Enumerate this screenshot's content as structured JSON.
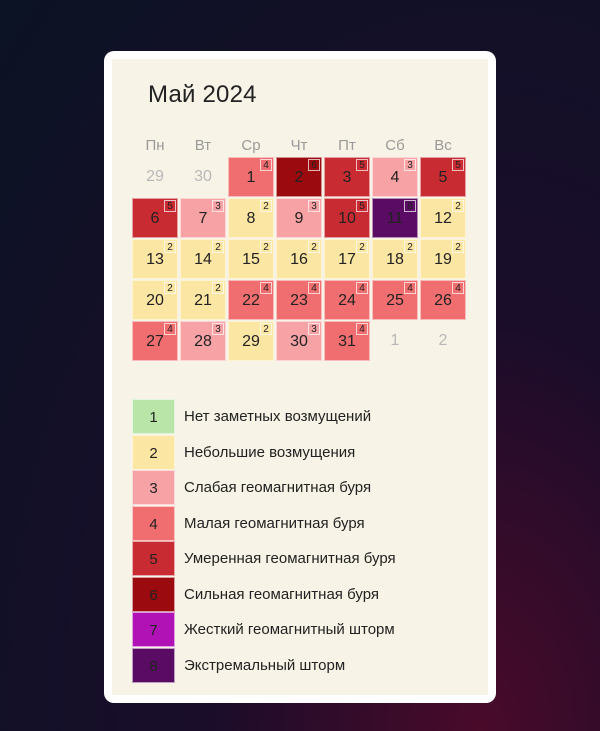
{
  "calendar": {
    "title": "Май 2024",
    "weekdays": [
      "Пн",
      "Вт",
      "Ср",
      "Чт",
      "Пт",
      "Сб",
      "Вс"
    ],
    "days": [
      {
        "day": "29",
        "level": null,
        "muted": true
      },
      {
        "day": "30",
        "level": null,
        "muted": true
      },
      {
        "day": "1",
        "level": 4
      },
      {
        "day": "2",
        "level": 6
      },
      {
        "day": "3",
        "level": 5
      },
      {
        "day": "4",
        "level": 3
      },
      {
        "day": "5",
        "level": 5
      },
      {
        "day": "6",
        "level": 5
      },
      {
        "day": "7",
        "level": 3
      },
      {
        "day": "8",
        "level": 2
      },
      {
        "day": "9",
        "level": 3
      },
      {
        "day": "10",
        "level": 5
      },
      {
        "day": "11",
        "level": 8
      },
      {
        "day": "12",
        "level": 2
      },
      {
        "day": "13",
        "level": 2
      },
      {
        "day": "14",
        "level": 2
      },
      {
        "day": "15",
        "level": 2
      },
      {
        "day": "16",
        "level": 2
      },
      {
        "day": "17",
        "level": 2
      },
      {
        "day": "18",
        "level": 2
      },
      {
        "day": "19",
        "level": 2
      },
      {
        "day": "20",
        "level": 2
      },
      {
        "day": "21",
        "level": 2
      },
      {
        "day": "22",
        "level": 4
      },
      {
        "day": "23",
        "level": 4
      },
      {
        "day": "24",
        "level": 4
      },
      {
        "day": "25",
        "level": 4
      },
      {
        "day": "26",
        "level": 4
      },
      {
        "day": "27",
        "level": 4
      },
      {
        "day": "28",
        "level": 3
      },
      {
        "day": "29",
        "level": 2
      },
      {
        "day": "30",
        "level": 3
      },
      {
        "day": "31",
        "level": 4
      },
      {
        "day": "1",
        "level": null,
        "muted": true
      },
      {
        "day": "2",
        "level": null,
        "muted": true
      }
    ]
  },
  "levels": {
    "1": {
      "color": "#b9e6a8",
      "label": "Нет заметных возмущений"
    },
    "2": {
      "color": "#fbe6a3",
      "label": "Небольшие возмущения"
    },
    "3": {
      "color": "#f7a3a6",
      "label": "Слабая геомагнитная буря"
    },
    "4": {
      "color": "#f06e70",
      "label": "Малая геомагнитная буря"
    },
    "5": {
      "color": "#c82b31",
      "label": "Умеренная геомагнитная буря"
    },
    "6": {
      "color": "#9a0a0e",
      "label": "Сильная геомагнитная буря"
    },
    "7": {
      "color": "#b012b6",
      "label": "Жесткий геомагнитный шторм"
    },
    "8": {
      "color": "#5a0b63",
      "label": "Экстремальный шторм"
    }
  },
  "legend_order": [
    "1",
    "2",
    "3",
    "4",
    "5",
    "6",
    "7",
    "8"
  ]
}
